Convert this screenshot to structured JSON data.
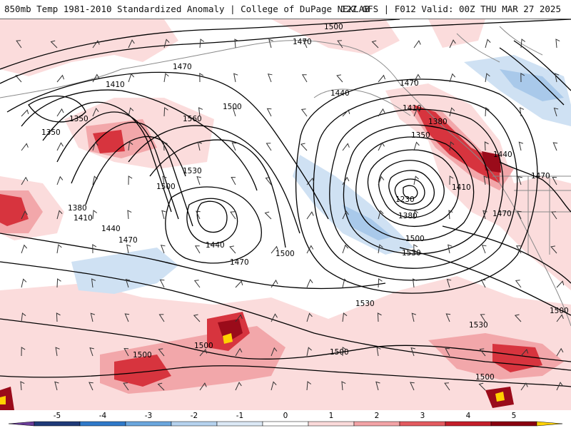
{
  "header": {
    "left_title": "850mb Temp 1981-2010 Standardized Anomaly | College of DuPage NEXLAB",
    "right_title": "12Z GFS | F012 Valid: 00Z THU MAR 27 2025"
  },
  "contours": {
    "labels": [
      {
        "id": "c1500a",
        "text": "1500"
      },
      {
        "id": "c1470a",
        "text": "1470"
      },
      {
        "id": "c1470b",
        "text": "1470"
      },
      {
        "id": "c1410a",
        "text": "1410"
      },
      {
        "id": "c1350a",
        "text": "1350"
      },
      {
        "id": "c1350b",
        "text": "1350"
      },
      {
        "id": "c1560",
        "text": "1560"
      },
      {
        "id": "c1500b",
        "text": "1500"
      },
      {
        "id": "c1440a",
        "text": "1440"
      },
      {
        "id": "c1470c",
        "text": "1470"
      },
      {
        "id": "c1410b",
        "text": "1410"
      },
      {
        "id": "c1380a",
        "text": "1380"
      },
      {
        "id": "c1350c",
        "text": "1350"
      },
      {
        "id": "c1530a",
        "text": "1530"
      },
      {
        "id": "c1500c",
        "text": "1500"
      },
      {
        "id": "c1380b",
        "text": "1380"
      },
      {
        "id": "c1410c",
        "text": "1410"
      },
      {
        "id": "c1440b",
        "text": "1440"
      },
      {
        "id": "c1470d",
        "text": "1470"
      },
      {
        "id": "c1440c",
        "text": "1440"
      },
      {
        "id": "c1470e",
        "text": "1470"
      },
      {
        "id": "c1500d",
        "text": "1500"
      },
      {
        "id": "c1230",
        "text": "1230"
      },
      {
        "id": "c1380c",
        "text": "1380"
      },
      {
        "id": "c1500e",
        "text": "1500"
      },
      {
        "id": "c1530b",
        "text": "1530"
      },
      {
        "id": "c1410d",
        "text": "1410"
      },
      {
        "id": "c1470f",
        "text": "1470"
      },
      {
        "id": "c1470g",
        "text": "1470"
      },
      {
        "id": "c1440d",
        "text": "1440"
      },
      {
        "id": "c1530c",
        "text": "1530"
      },
      {
        "id": "c1530d",
        "text": "1530"
      },
      {
        "id": "c1500f",
        "text": "1500"
      },
      {
        "id": "c1500g",
        "text": "1500"
      },
      {
        "id": "c1500h",
        "text": "1500"
      },
      {
        "id": "c1500i",
        "text": "1500"
      },
      {
        "id": "c1500j",
        "text": "1500"
      }
    ]
  },
  "colorbar": {
    "ticks": [
      "-5",
      "-4",
      "-3",
      "-2",
      "-1",
      "0",
      "1",
      "2",
      "3",
      "4",
      "5"
    ],
    "colors": [
      "#6a3d9a",
      "#1f3a78",
      "#2f79c9",
      "#6aa6dd",
      "#b5d2ee",
      "#dce9f6",
      "#ffffff",
      "#fbdada",
      "#f3a3a6",
      "#e35a5f",
      "#c41e2a",
      "#8a0010",
      "#ffd200"
    ]
  },
  "colors": {
    "warm_light": "#fbdcdc",
    "warm_mid": "#f2a7aa",
    "warm_strong": "#d7343e",
    "warm_extreme": "#9a0b1a",
    "cold_light": "#cfe1f3",
    "cold_mid": "#a9c9ea",
    "contour": "#000000",
    "coast": "#8a8a8a"
  }
}
